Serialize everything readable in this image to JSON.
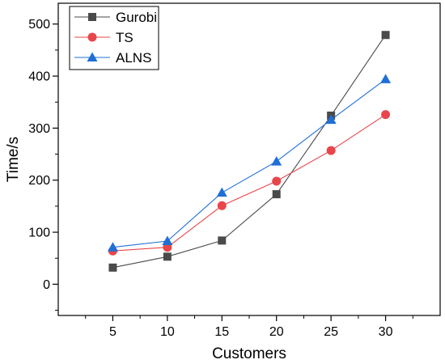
{
  "chart_data": {
    "type": "line",
    "title": "",
    "xlabel": "Customers",
    "ylabel": "Time/s",
    "x": [
      5,
      10,
      15,
      20,
      25,
      30
    ],
    "x_ticks": [
      "5",
      "10",
      "15",
      "20",
      "25",
      "30"
    ],
    "xlim": [
      0,
      35
    ],
    "y_ticks": [
      "0",
      "100",
      "200",
      "300",
      "400",
      "500"
    ],
    "ylim": [
      -60,
      540
    ],
    "grid": false,
    "legend_position": "top-left",
    "series": [
      {
        "name": "Gurobi",
        "marker": "square",
        "color": "#4a4a4a",
        "values": [
          32,
          53,
          84,
          173,
          324,
          479
        ]
      },
      {
        "name": "TS",
        "marker": "circle",
        "color": "#e8464a",
        "values": [
          64,
          71,
          151,
          198,
          257,
          326
        ]
      },
      {
        "name": "ALNS",
        "marker": "triangle",
        "color": "#1f6fd6",
        "values": [
          71,
          83,
          176,
          236,
          316,
          394
        ]
      }
    ]
  }
}
